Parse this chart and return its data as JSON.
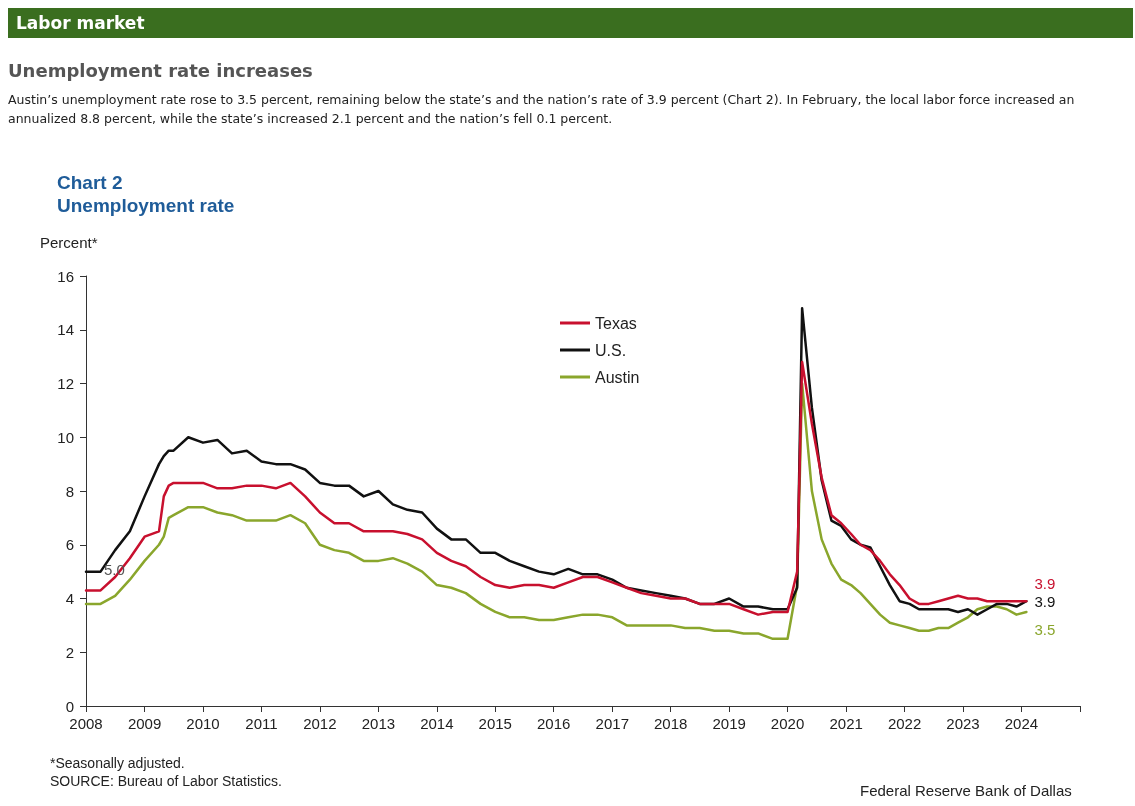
{
  "chart_data": {
    "type": "line",
    "title": "Chart 2",
    "subtitle": "Unemployment rate",
    "ylabel": "Percent*",
    "annotations": [
      "Labor market",
      "Unemployment rate increases",
      "Austin’s unemployment rate rose to 3.5 percent, remaining below the state’s and the nation’s rate of 3.9 percent (Chart 2). In February, the local labor force increased an annualized 8.8 percent, while the state’s increased 2.1 percent and the nation’s fell 0.1 percent.",
      "*Seasonally adjusted.",
      "SOURCE: Bureau of Labor Statistics.",
      "Federal Reserve Bank of Dallas",
      "5.0"
    ],
    "x": [
      "2008-01",
      "2008-04",
      "2008-07",
      "2008-10",
      "2009-01",
      "2009-04",
      "2009-05",
      "2009-06",
      "2009-07",
      "2009-10",
      "2010-01",
      "2010-04",
      "2010-07",
      "2010-10",
      "2011-01",
      "2011-04",
      "2011-07",
      "2011-10",
      "2012-01",
      "2012-04",
      "2012-07",
      "2012-10",
      "2013-01",
      "2013-04",
      "2013-07",
      "2013-10",
      "2014-01",
      "2014-04",
      "2014-07",
      "2014-10",
      "2015-01",
      "2015-04",
      "2015-07",
      "2015-10",
      "2016-01",
      "2016-04",
      "2016-07",
      "2016-10",
      "2017-01",
      "2017-04",
      "2017-07",
      "2017-10",
      "2018-01",
      "2018-04",
      "2018-07",
      "2018-10",
      "2019-01",
      "2019-04",
      "2019-07",
      "2019-10",
      "2020-01",
      "2020-03",
      "2020-04",
      "2020-06",
      "2020-08",
      "2020-10",
      "2020-12",
      "2021-02",
      "2021-04",
      "2021-06",
      "2021-08",
      "2021-10",
      "2021-12",
      "2022-02",
      "2022-04",
      "2022-06",
      "2022-08",
      "2022-10",
      "2022-12",
      "2023-02",
      "2023-04",
      "2023-06",
      "2023-08",
      "2023-10",
      "2023-12",
      "2024-02"
    ],
    "series": [
      {
        "name": "Texas",
        "color": "#c8102e",
        "values": [
          4.3,
          4.3,
          4.8,
          5.5,
          6.3,
          6.5,
          7.8,
          8.2,
          8.3,
          8.3,
          8.3,
          8.1,
          8.1,
          8.2,
          8.2,
          8.1,
          8.3,
          7.8,
          7.2,
          6.8,
          6.8,
          6.5,
          6.5,
          6.5,
          6.4,
          6.2,
          5.7,
          5.4,
          5.2,
          4.8,
          4.5,
          4.4,
          4.5,
          4.5,
          4.4,
          4.6,
          4.8,
          4.8,
          4.6,
          4.4,
          4.2,
          4.1,
          4.0,
          4.0,
          3.8,
          3.8,
          3.8,
          3.6,
          3.4,
          3.5,
          3.5,
          5.0,
          12.8,
          10.5,
          8.5,
          7.1,
          6.8,
          6.4,
          6.0,
          5.8,
          5.4,
          4.9,
          4.5,
          4.0,
          3.8,
          3.8,
          3.9,
          4.0,
          4.1,
          4.0,
          4.0,
          3.9,
          3.9,
          3.9,
          3.9,
          3.9
        ],
        "value_labels": [
          null,
          null,
          null,
          null,
          null,
          null,
          null,
          null,
          null,
          null,
          null,
          null,
          null,
          null,
          null,
          null,
          null,
          null,
          null,
          null,
          null,
          null,
          null,
          null,
          null,
          null,
          null,
          null,
          null,
          null,
          null,
          null,
          null,
          null,
          null,
          null,
          null,
          null,
          null,
          null,
          null,
          null,
          null,
          null,
          null,
          null,
          null,
          null,
          null,
          null,
          null,
          null,
          null,
          null,
          null,
          null,
          null,
          null,
          null,
          null,
          null,
          null,
          null,
          null,
          null,
          null,
          null,
          null,
          null,
          null,
          null,
          null,
          null,
          null,
          null,
          "3.9"
        ]
      },
      {
        "name": "U.S.",
        "color": "#111111",
        "values": [
          5.0,
          5.0,
          5.8,
          6.5,
          7.8,
          9.0,
          9.3,
          9.5,
          9.5,
          10.0,
          9.8,
          9.9,
          9.4,
          9.5,
          9.1,
          9.0,
          9.0,
          8.8,
          8.3,
          8.2,
          8.2,
          7.8,
          8.0,
          7.5,
          7.3,
          7.2,
          6.6,
          6.2,
          6.2,
          5.7,
          5.7,
          5.4,
          5.2,
          5.0,
          4.9,
          5.1,
          4.9,
          4.9,
          4.7,
          4.4,
          4.3,
          4.2,
          4.1,
          4.0,
          3.8,
          3.8,
          4.0,
          3.7,
          3.7,
          3.6,
          3.6,
          4.4,
          14.8,
          11.1,
          8.4,
          6.9,
          6.7,
          6.2,
          6.0,
          5.9,
          5.2,
          4.5,
          3.9,
          3.8,
          3.6,
          3.6,
          3.6,
          3.6,
          3.5,
          3.6,
          3.4,
          3.6,
          3.8,
          3.8,
          3.7,
          3.9
        ],
        "value_labels": [
          null,
          null,
          null,
          null,
          null,
          null,
          null,
          null,
          null,
          null,
          null,
          null,
          null,
          null,
          null,
          null,
          null,
          null,
          null,
          null,
          null,
          null,
          null,
          null,
          null,
          null,
          null,
          null,
          null,
          null,
          null,
          null,
          null,
          null,
          null,
          null,
          null,
          null,
          null,
          null,
          null,
          null,
          null,
          null,
          null,
          null,
          null,
          null,
          null,
          null,
          null,
          null,
          null,
          null,
          null,
          null,
          null,
          null,
          null,
          null,
          null,
          null,
          null,
          null,
          null,
          null,
          null,
          null,
          null,
          null,
          null,
          null,
          null,
          null,
          null,
          "3.9"
        ]
      },
      {
        "name": "Austin",
        "color": "#8aa62c",
        "values": [
          3.8,
          3.8,
          4.1,
          4.7,
          5.4,
          6.0,
          6.3,
          7.0,
          7.1,
          7.4,
          7.4,
          7.2,
          7.1,
          6.9,
          6.9,
          6.9,
          7.1,
          6.8,
          6.0,
          5.8,
          5.7,
          5.4,
          5.4,
          5.5,
          5.3,
          5.0,
          4.5,
          4.4,
          4.2,
          3.8,
          3.5,
          3.3,
          3.3,
          3.2,
          3.2,
          3.3,
          3.4,
          3.4,
          3.3,
          3.0,
          3.0,
          3.0,
          3.0,
          2.9,
          2.9,
          2.8,
          2.8,
          2.7,
          2.7,
          2.5,
          2.5,
          4.5,
          12.0,
          8.0,
          6.2,
          5.3,
          4.7,
          4.5,
          4.2,
          3.8,
          3.4,
          3.1,
          3.0,
          2.9,
          2.8,
          2.8,
          2.9,
          2.9,
          3.1,
          3.3,
          3.6,
          3.7,
          3.7,
          3.6,
          3.4,
          3.5
        ],
        "value_labels": [
          null,
          null,
          null,
          null,
          null,
          null,
          null,
          null,
          null,
          null,
          null,
          null,
          null,
          null,
          null,
          null,
          null,
          null,
          null,
          null,
          null,
          null,
          null,
          null,
          null,
          null,
          null,
          null,
          null,
          null,
          null,
          null,
          null,
          null,
          null,
          null,
          null,
          null,
          null,
          null,
          null,
          null,
          null,
          null,
          null,
          null,
          null,
          null,
          null,
          null,
          null,
          null,
          null,
          null,
          null,
          null,
          null,
          null,
          null,
          null,
          null,
          null,
          null,
          null,
          null,
          null,
          null,
          null,
          null,
          null,
          null,
          null,
          null,
          null,
          null,
          "3.5"
        ]
      }
    ],
    "xlim": [
      "2008",
      "2025"
    ],
    "xticks": [
      "2008",
      "2009",
      "2010",
      "2011",
      "2012",
      "2013",
      "2014",
      "2015",
      "2016",
      "2017",
      "2018",
      "2019",
      "2020",
      "2021",
      "2022",
      "2023",
      "2024",
      {
        "value": "2025",
        "label": null
      }
    ],
    "ylim": [
      0,
      16
    ],
    "yticks": [
      0,
      2,
      4,
      6,
      8,
      10,
      12,
      14,
      16
    ],
    "grid": false,
    "legend": "top",
    "marker": "none",
    "line_style": "solid"
  }
}
